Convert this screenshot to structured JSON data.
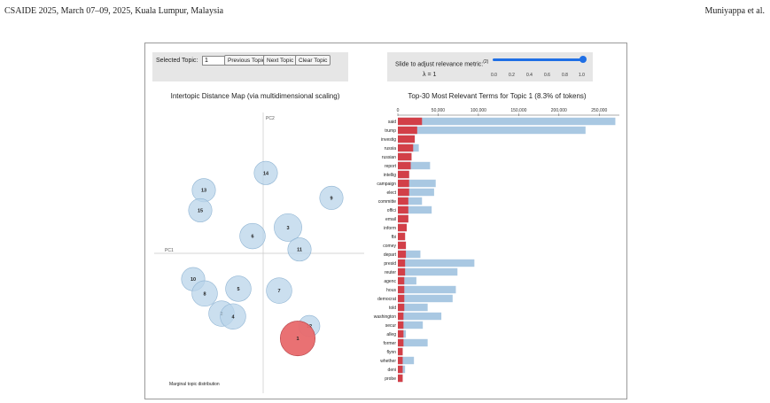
{
  "header": {
    "left": "CSAIDE 2025, March 07–09, 2025, Kuala Lumpur, Malaysia",
    "right": "Muniyappa et al."
  },
  "controls": {
    "selected_topic_label": "Selected Topic:",
    "selected_topic_value": "1",
    "prev_label": "Previous Topic",
    "next_label": "Next Topic",
    "clear_label": "Clear Topic",
    "slider_label": "Slide to adjust relevance metric:",
    "slider_footnote": "(2)",
    "lambda_label": "λ = 1",
    "lambda_value": 1,
    "slider_ticks": [
      "0.0",
      "0.2",
      "0.4",
      "0.6",
      "0.8",
      "1.0"
    ]
  },
  "map": {
    "title": "Intertopic Distance Map (via multidimensional scaling)",
    "pc1_label": "PC1",
    "pc2_label": "PC2",
    "legend_label": "Marginal topic distribution",
    "selected_color": "#e8696b",
    "topic_color": "#b9d4ea",
    "topics": [
      {
        "id": "14",
        "pc1": 0.03,
        "pc2": 0.84,
        "size": 0.55,
        "selected": false
      },
      {
        "id": "13",
        "pc1": -0.67,
        "pc2": 0.66,
        "size": 0.55,
        "selected": false
      },
      {
        "id": "15",
        "pc1": -0.71,
        "pc2": 0.45,
        "size": 0.55,
        "selected": false
      },
      {
        "id": "9",
        "pc1": 0.77,
        "pc2": 0.58,
        "size": 0.55,
        "selected": false
      },
      {
        "id": "3",
        "pc1": 0.28,
        "pc2": 0.27,
        "size": 0.65,
        "selected": false
      },
      {
        "id": "6",
        "pc1": -0.12,
        "pc2": 0.18,
        "size": 0.6,
        "selected": false
      },
      {
        "id": "11",
        "pc1": 0.41,
        "pc2": 0.04,
        "size": 0.55,
        "selected": false
      },
      {
        "id": "10",
        "pc1": -0.79,
        "pc2": -0.27,
        "size": 0.55,
        "selected": false
      },
      {
        "id": "8",
        "pc1": -0.66,
        "pc2": -0.42,
        "size": 0.6,
        "selected": false
      },
      {
        "id": "5",
        "pc1": -0.28,
        "pc2": -0.37,
        "size": 0.6,
        "selected": false
      },
      {
        "id": "7",
        "pc1": 0.18,
        "pc2": -0.39,
        "size": 0.6,
        "selected": false
      },
      {
        "id": "2",
        "pc1": -0.47,
        "pc2": -0.63,
        "size": 0.6,
        "selected": false
      },
      {
        "id": "4",
        "pc1": -0.34,
        "pc2": -0.66,
        "size": 0.6,
        "selected": false
      },
      {
        "id": "12",
        "pc1": 0.52,
        "pc2": -0.76,
        "size": 0.5,
        "selected": false
      },
      {
        "id": "1",
        "pc1": 0.39,
        "pc2": -0.89,
        "size": 0.82,
        "selected": true
      }
    ]
  },
  "chart_data": {
    "type": "bar",
    "title": "Top-30 Most Relevant Terms for Topic 1 (8.3% of tokens)",
    "orientation": "horizontal",
    "xlim": [
      0,
      275000
    ],
    "x_ticks": [
      "0",
      "50,000",
      "100,000",
      "150,000",
      "200,000",
      "250,000"
    ],
    "categories": [
      "said",
      "trump",
      "investig",
      "russia",
      "russian",
      "report",
      "intellig",
      "campaign",
      "elect",
      "committe",
      "offici",
      "email",
      "inform",
      "fbi",
      "comey",
      "depart",
      "presid",
      "reuter",
      "agenc",
      "hous",
      "democrat",
      "told",
      "washington",
      "secur",
      "alleg",
      "former",
      "flynn",
      "whether",
      "deni",
      "probe"
    ],
    "series": [
      {
        "role": "overall",
        "color": "#a9c8e2",
        "values": [
          270000,
          233000,
          21000,
          26000,
          17000,
          40000,
          14000,
          47000,
          45000,
          30000,
          42000,
          13000,
          11000,
          9000,
          10000,
          28000,
          95000,
          74000,
          23000,
          72000,
          68000,
          37000,
          54000,
          31000,
          10000,
          37000,
          6000,
          20000,
          9000,
          6000
        ]
      },
      {
        "role": "estimated",
        "color": "#d23f48",
        "values": [
          30000,
          24000,
          21000,
          19000,
          17000,
          16000,
          14000,
          14000,
          14000,
          13000,
          13000,
          13000,
          11000,
          9000,
          10000,
          10000,
          9000,
          9000,
          8000,
          8000,
          8000,
          8000,
          7000,
          7000,
          7000,
          7000,
          6000,
          6000,
          6000,
          6000
        ]
      }
    ]
  }
}
